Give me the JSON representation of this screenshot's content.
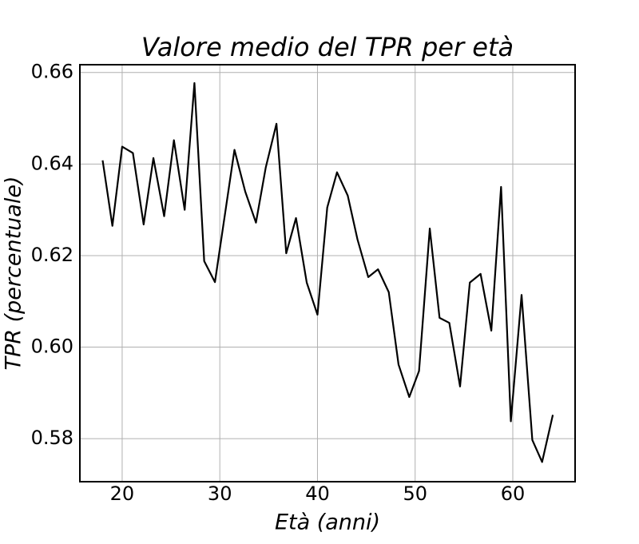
{
  "chart_data": {
    "type": "line",
    "title": "Valore medio del TPR per età",
    "xlabel": "Età (anni)",
    "ylabel": "TPR (percentuale)",
    "x": [
      18.0,
      19.0,
      20.0,
      21.1,
      22.2,
      23.2,
      24.3,
      25.3,
      26.4,
      27.4,
      28.4,
      29.5,
      31.5,
      32.6,
      33.7,
      34.7,
      35.8,
      36.8,
      37.8,
      38.9,
      40.0,
      41.0,
      42.0,
      43.1,
      44.1,
      45.2,
      46.2,
      47.3,
      48.3,
      49.4,
      50.4,
      51.5,
      52.5,
      53.5,
      54.6,
      55.6,
      56.7,
      57.8,
      58.8,
      59.8,
      60.9,
      62.0,
      63.0,
      64.1
    ],
    "series": [
      {
        "name": "TPR",
        "color": "#000000",
        "values": [
          0.6408,
          0.6265,
          0.6438,
          0.6424,
          0.6268,
          0.6413,
          0.6286,
          0.6452,
          0.63,
          0.6577,
          0.6188,
          0.6142,
          0.6431,
          0.634,
          0.6272,
          0.6392,
          0.6488,
          0.6205,
          0.6282,
          0.6141,
          0.6071,
          0.6305,
          0.6382,
          0.6331,
          0.6235,
          0.6153,
          0.617,
          0.612,
          0.5962,
          0.5891,
          0.5948,
          0.6259,
          0.6064,
          0.6053,
          0.5914,
          0.6141,
          0.616,
          0.6036,
          0.635,
          0.5838,
          0.6114,
          0.5797,
          0.5749,
          0.5852
        ]
      }
    ],
    "xlim": [
      15.67,
      66.38
    ],
    "xticks": [
      20,
      30,
      40,
      50,
      60
    ],
    "ylim": [
      0.5706,
      0.6617
    ],
    "yticks": [
      0.58,
      {
        "value": 0.6,
        "label": "0.60"
      },
      0.62,
      0.64,
      0.66
    ],
    "grid": true
  }
}
